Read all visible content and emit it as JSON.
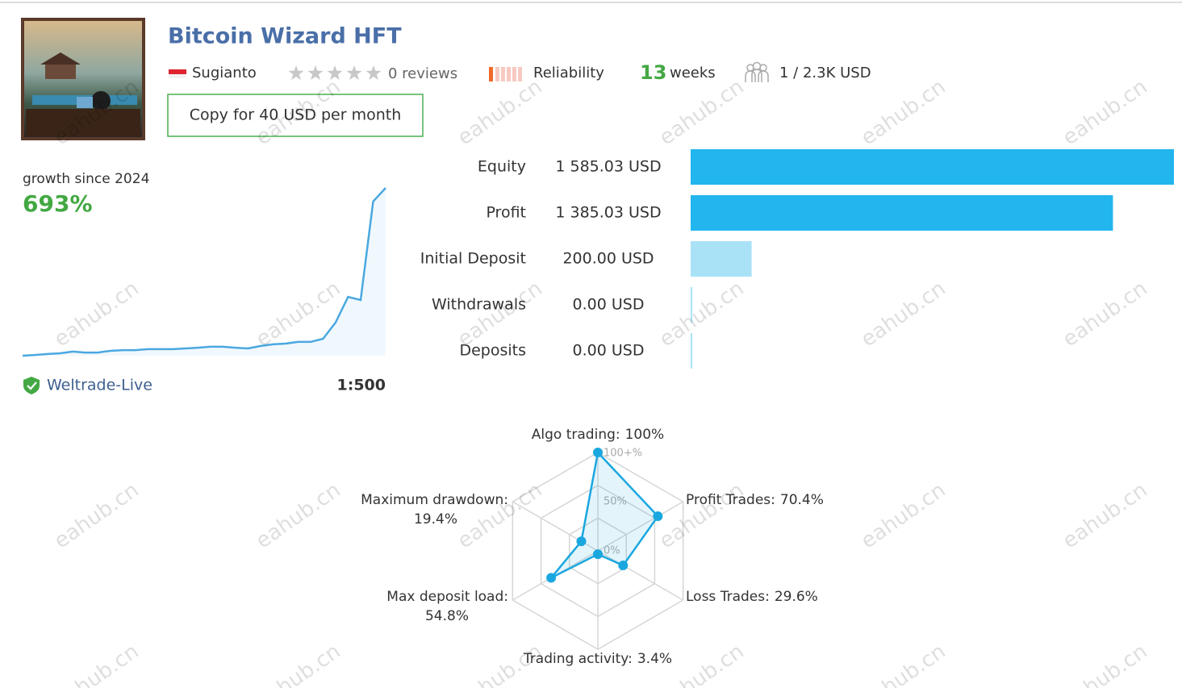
{
  "header": {
    "title": "Bitcoin Wizard HFT",
    "author": "Sugianto",
    "reviews": "0 reviews",
    "reliability": "Reliability",
    "weeks_value": "13",
    "weeks_unit": "weeks",
    "subscribers": "1 / 2.3K USD",
    "copy_button": "Copy for 40 USD per month"
  },
  "growth": {
    "label": "growth since 2024",
    "value": "693%",
    "broker": "Weltrade-Live",
    "leverage": "1:500",
    "color": "#4aa8e0",
    "curve": [
      0,
      3,
      7,
      10,
      17,
      13,
      13,
      20,
      23,
      23,
      27,
      27,
      27,
      30,
      33,
      37,
      37,
      33,
      30,
      40,
      47,
      50,
      57,
      57,
      70,
      137,
      243,
      230,
      637,
      693
    ]
  },
  "balance": {
    "rows": [
      {
        "label": "Equity",
        "value_label": "1 585.03 USD",
        "value": 1585.03,
        "color": "#22b5ee"
      },
      {
        "label": "Profit",
        "value_label": "1 385.03 USD",
        "value": 1385.03,
        "color": "#22b5ee"
      },
      {
        "label": "Initial Deposit",
        "value_label": "200.00 USD",
        "value": 200,
        "color": "#a9e2f7"
      },
      {
        "label": "Withdrawals",
        "value_label": "0.00 USD",
        "value": 0,
        "color": "#a9e2f7"
      },
      {
        "label": "Deposits",
        "value_label": "0.00 USD",
        "value": 0,
        "color": "#a9e2f7"
      }
    ]
  },
  "radar": {
    "color": "#1aa7e0",
    "rmax": 100,
    "ring_labels": [
      "100+%",
      "50%",
      "0%"
    ],
    "axes": [
      {
        "name": "Algo trading:",
        "value_label": "100%",
        "value": 100
      },
      {
        "name": "Profit Trades:",
        "value_label": "70.4%",
        "value": 70.4
      },
      {
        "name": "Loss Trades:",
        "value_label": "29.6%",
        "value": 29.6
      },
      {
        "name": "Trading activity:",
        "value_label": "3.4%",
        "value": 3.4
      },
      {
        "name": "Max deposit load:",
        "value_label": "54.8%",
        "value": 54.8
      },
      {
        "name": "Maximum drawdown:",
        "value_label": "19.4%",
        "value": 19.4
      }
    ]
  },
  "watermark": "eahub.cn"
}
